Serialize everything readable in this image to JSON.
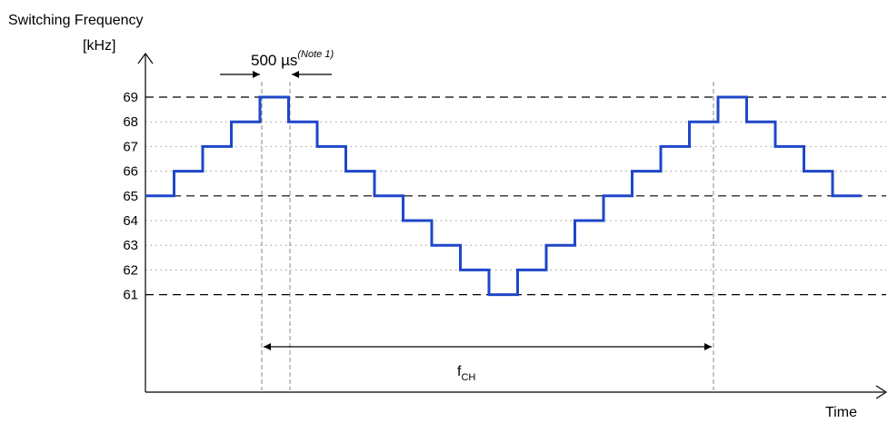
{
  "chart_data": {
    "type": "line",
    "title": "",
    "ylabel_line1": "Switching Frequency",
    "ylabel_line2": "[kHz]",
    "xlabel": "Time",
    "y_ticks": [
      "69",
      "68",
      "67",
      "66",
      "65",
      "64",
      "63",
      "62",
      "61"
    ],
    "ylim": [
      58,
      70
    ],
    "dashed_levels": [
      69,
      65,
      61
    ],
    "dotted_levels": [
      68,
      67,
      66,
      64,
      63,
      62
    ],
    "series": [
      {
        "color": "#1f47c8",
        "steps": [
          65,
          66,
          67,
          68,
          69,
          68,
          67,
          66,
          65,
          64,
          63,
          62,
          61,
          62,
          63,
          64,
          65,
          66,
          67,
          68,
          69,
          68,
          67,
          66,
          65
        ]
      }
    ],
    "annotations": {
      "step_duration": {
        "text": "500 µs",
        "note": "(Note 1)"
      },
      "period": {
        "base": "f",
        "sub": "CH"
      }
    }
  }
}
